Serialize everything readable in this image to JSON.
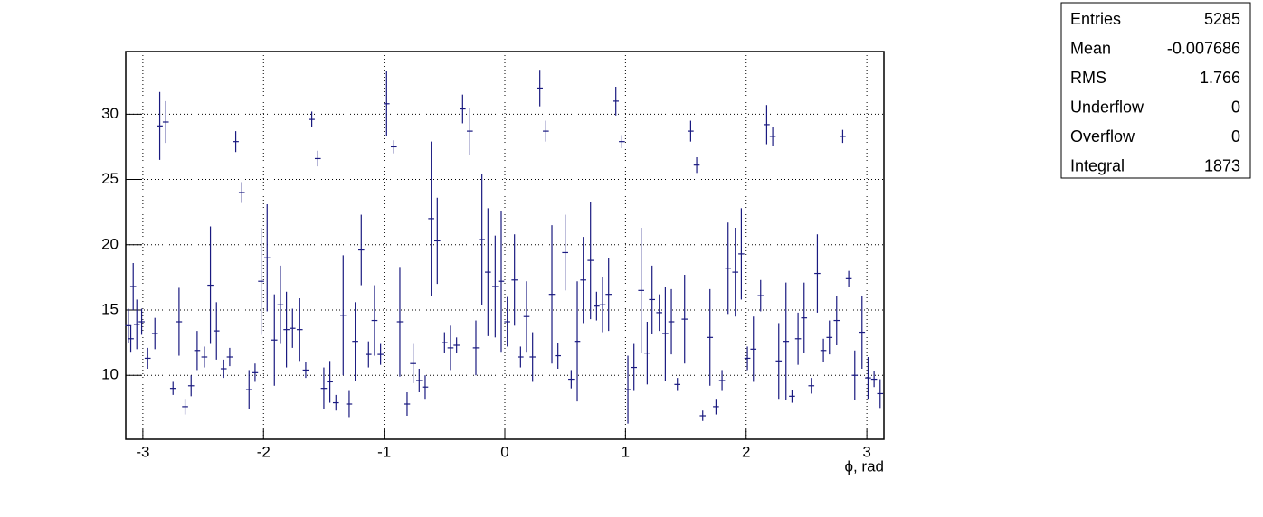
{
  "chart_data": {
    "type": "errorbar",
    "x_label": "ϕ, rad",
    "x": [
      -3.12,
      -3.1,
      -3.08,
      -3.05,
      -3.01,
      -2.96,
      -2.9,
      -2.86,
      -2.81,
      -2.75,
      -2.7,
      -2.65,
      -2.6,
      -2.55,
      -2.49,
      -2.44,
      -2.39,
      -2.33,
      -2.28,
      -2.23,
      -2.18,
      -2.12,
      -2.07,
      -2.02,
      -1.97,
      -1.91,
      -1.86,
      -1.81,
      -1.76,
      -1.7,
      -1.65,
      -1.6,
      -1.55,
      -1.5,
      -1.45,
      -1.4,
      -1.34,
      -1.29,
      -1.24,
      -1.19,
      -1.13,
      -1.08,
      -1.03,
      -0.98,
      -0.92,
      -0.87,
      -0.81,
      -0.76,
      -0.71,
      -0.66,
      -0.61,
      -0.56,
      -0.5,
      -0.45,
      -0.4,
      -0.35,
      -0.29,
      -0.24,
      -0.19,
      -0.14,
      -0.08,
      -0.03,
      0.02,
      0.08,
      0.13,
      0.18,
      0.23,
      0.29,
      0.34,
      0.39,
      0.44,
      0.5,
      0.55,
      0.6,
      0.65,
      0.71,
      0.76,
      0.81,
      0.86,
      0.92,
      0.97,
      1.02,
      1.07,
      1.13,
      1.18,
      1.22,
      1.28,
      1.33,
      1.38,
      1.43,
      1.49,
      1.54,
      1.59,
      1.64,
      1.7,
      1.75,
      1.8,
      1.85,
      1.91,
      1.96,
      2.01,
      2.06,
      2.12,
      2.17,
      2.22,
      2.27,
      2.33,
      2.38,
      2.43,
      2.48,
      2.54,
      2.59,
      2.64,
      2.69,
      2.75,
      2.8,
      2.85,
      2.9,
      2.96,
      3.01,
      3.06,
      3.11
    ],
    "values": [
      13.8,
      12.8,
      16.8,
      13.9,
      14.1,
      11.3,
      13.2,
      29.1,
      29.4,
      9.0,
      14.1,
      7.6,
      9.2,
      11.9,
      11.4,
      16.9,
      13.4,
      10.5,
      11.4,
      27.9,
      24.0,
      8.9,
      10.2,
      17.2,
      19.0,
      12.7,
      15.4,
      13.5,
      13.6,
      13.5,
      10.4,
      29.6,
      26.6,
      9.0,
      9.5,
      7.9,
      14.6,
      7.8,
      12.6,
      19.6,
      11.6,
      14.2,
      11.6,
      30.8,
      27.5,
      14.1,
      7.8,
      10.9,
      9.6,
      9.1,
      22.0,
      20.3,
      12.5,
      12.1,
      12.3,
      30.4,
      28.7,
      12.1,
      20.4,
      17.9,
      16.8,
      17.2,
      14.1,
      17.3,
      11.4,
      14.5,
      11.4,
      32.0,
      28.7,
      16.2,
      11.5,
      19.4,
      9.7,
      12.6,
      17.3,
      18.8,
      15.3,
      15.4,
      16.2,
      31.0,
      27.9,
      8.9,
      10.6,
      16.5,
      11.7,
      15.8,
      14.8,
      13.2,
      14.1,
      9.3,
      14.3,
      28.7,
      26.1,
      6.9,
      12.9,
      7.6,
      9.6,
      18.2,
      17.9,
      19.3,
      11.3,
      12.0,
      16.1,
      29.2,
      28.3,
      11.1,
      12.6,
      8.4,
      12.8,
      14.4,
      9.2,
      17.8,
      11.9,
      12.9,
      14.2,
      28.3,
      17.4,
      10.0,
      13.3,
      9.8,
      9.7,
      8.6
    ],
    "errors": [
      1.3,
      1.0,
      1.8,
      1.9,
      1.0,
      0.8,
      1.2,
      2.6,
      1.6,
      0.5,
      2.6,
      0.6,
      0.8,
      1.5,
      0.8,
      4.5,
      2.2,
      0.7,
      0.7,
      0.8,
      0.8,
      1.5,
      0.7,
      4.1,
      4.1,
      3.5,
      3.0,
      2.9,
      1.5,
      2.4,
      0.6,
      0.6,
      0.6,
      1.6,
      1.6,
      0.6,
      4.6,
      1.0,
      3.0,
      2.7,
      1.0,
      2.7,
      0.8,
      2.5,
      0.5,
      4.2,
      0.9,
      1.5,
      0.9,
      0.9,
      5.9,
      3.3,
      0.8,
      1.7,
      0.6,
      1.1,
      1.8,
      2.1,
      5.0,
      4.9,
      3.9,
      5.4,
      1.9,
      3.5,
      0.8,
      2.7,
      1.9,
      1.4,
      0.8,
      5.3,
      1.0,
      2.9,
      0.7,
      4.6,
      3.3,
      4.5,
      1.1,
      2.1,
      2.8,
      1.1,
      0.5,
      2.6,
      1.8,
      4.8,
      2.4,
      2.6,
      1.4,
      3.6,
      2.5,
      0.5,
      3.4,
      0.8,
      0.6,
      0.4,
      3.7,
      0.6,
      0.8,
      3.5,
      3.4,
      3.5,
      0.9,
      2.5,
      1.2,
      1.5,
      0.7,
      2.9,
      4.5,
      0.5,
      2.0,
      2.7,
      0.6,
      3.0,
      0.9,
      1.3,
      1.9,
      0.5,
      0.6,
      1.9,
      2.8,
      1.6,
      0.6,
      1.1
    ],
    "color": "#1a1a80",
    "xlim": [
      -3.1416,
      3.1416
    ],
    "ylim": [
      5.1,
      34.8
    ],
    "xticks": [
      -3,
      -2,
      -1,
      0,
      1,
      2,
      3
    ],
    "yticks": [
      10,
      15,
      20,
      25,
      30
    ],
    "grid": true
  },
  "stats": {
    "rows": [
      [
        "Entries",
        "5285"
      ],
      [
        "Mean",
        "-0.007686"
      ],
      [
        "RMS",
        "1.766"
      ],
      [
        "Underflow",
        "0"
      ],
      [
        "Overflow",
        "0"
      ],
      [
        "Integral",
        "1873"
      ]
    ]
  }
}
